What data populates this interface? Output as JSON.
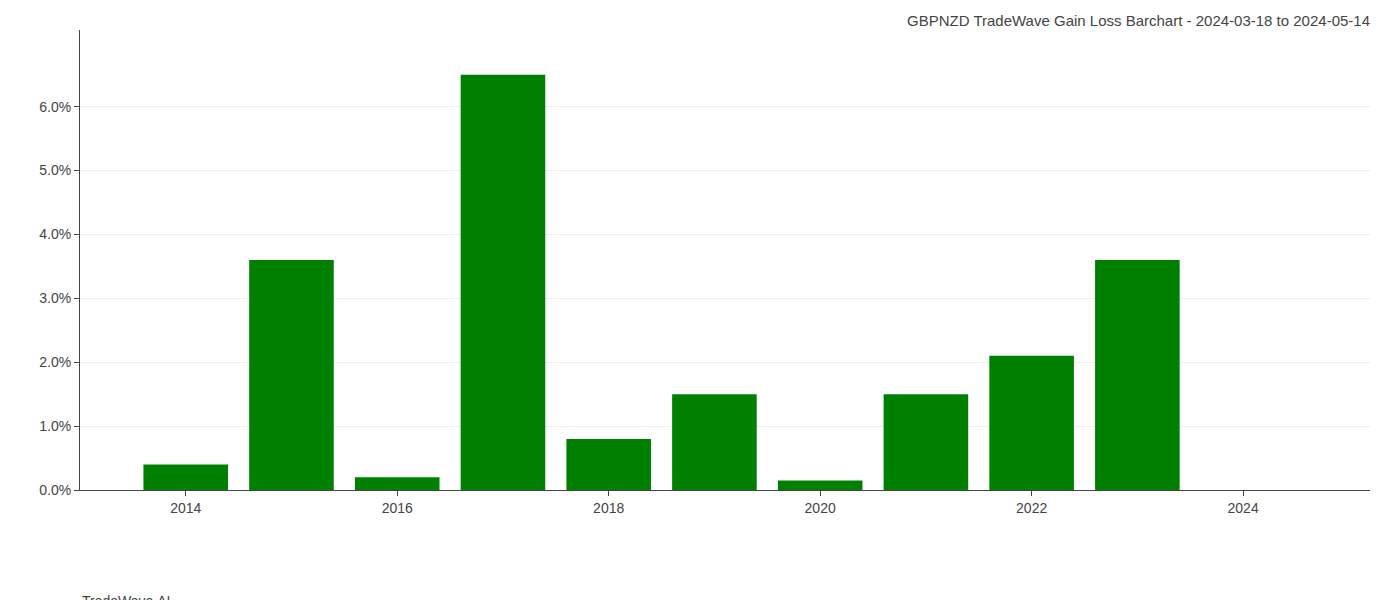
{
  "chart_data": {
    "type": "bar",
    "title": "GBPNZD TradeWave Gain Loss Barchart - 2024-03-18 to 2024-05-14",
    "annotations": [
      "TradeWave.AI"
    ],
    "x": [
      2014,
      2015,
      2016,
      2017,
      2018,
      2019,
      2020,
      2021,
      2022,
      2023,
      2024
    ],
    "values": [
      0.004,
      0.036,
      0.002,
      0.065,
      0.008,
      0.015,
      0.0015,
      0.015,
      0.021,
      0.036,
      0.0
    ],
    "color": "#008000",
    "xlim": [
      2013.0,
      2025.2
    ],
    "xticks": [
      2014,
      2016,
      2018,
      2020,
      2022,
      2024
    ],
    "ylim": [
      0,
      0.072
    ],
    "yticks": [
      {
        "value": 0.0,
        "label": "0.0%"
      },
      {
        "value": 0.01,
        "label": "1.0%"
      },
      {
        "value": 0.02,
        "label": "2.0%"
      },
      {
        "value": 0.03,
        "label": "3.0%"
      },
      {
        "value": 0.04,
        "label": "4.0%"
      },
      {
        "value": 0.05,
        "label": "5.0%"
      },
      {
        "value": 0.06,
        "label": "6.0%"
      }
    ],
    "grid": true
  }
}
